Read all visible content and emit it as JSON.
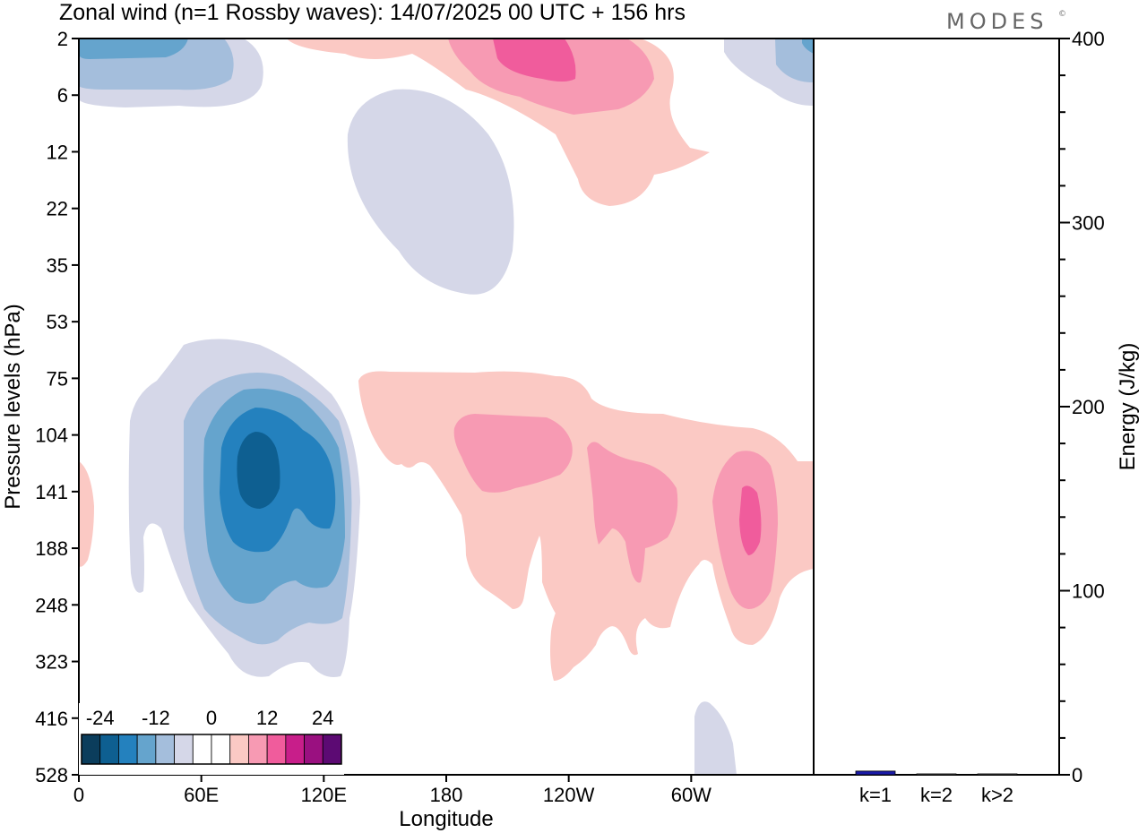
{
  "header": {
    "title": "Zonal wind (n=1 Rossby waves):  14/07/2025  00 UTC  + 156 hrs",
    "brand": "MODES",
    "brand_mark": "©"
  },
  "chart_data": [
    {
      "type": "heatmap",
      "title": "Zonal wind (n=1 Rossby waves):  14/07/2025  00 UTC  + 156 hrs",
      "xlabel": "Longitude",
      "ylabel": "Pressure levels (hPa)",
      "x_ticks": [
        "0",
        "60E",
        "120E",
        "180",
        "120W",
        "60W"
      ],
      "x_tick_degrees_east": [
        0,
        60,
        120,
        180,
        240,
        300
      ],
      "xlim_degrees_east": [
        0,
        360
      ],
      "y_ticks": [
        "2",
        "6",
        "12",
        "22",
        "35",
        "53",
        "75",
        "104",
        "141",
        "188",
        "248",
        "323",
        "416",
        "528"
      ],
      "y_order": "top-to-bottom",
      "colorbar": {
        "labels": [
          "-24",
          "-12",
          "0",
          "12",
          "24"
        ],
        "colors": [
          "#0b3d5c",
          "#0e5f91",
          "#2481be",
          "#65a4cd",
          "#a4bedc",
          "#d5d7e8",
          "#ffffff",
          "#ffffff",
          "#fbc9c4",
          "#f79ab3",
          "#f05c9c",
          "#c81e8a",
          "#9a1080",
          "#5c0a73"
        ]
      },
      "colors": {
        "neg1": "#d5d7e8",
        "neg2": "#a4bedc",
        "neg3": "#65a4cd",
        "neg4": "#2481be",
        "neg5": "#0e5f91",
        "pos1": "#fbc9c4",
        "pos2": "#f79ab3",
        "pos3": "#f05c9c"
      }
    },
    {
      "type": "bar",
      "ylabel": "Energy (J/kg)",
      "categories": [
        "k=1",
        "k=2",
        "k>2"
      ],
      "values": [
        2,
        0.5,
        0.5
      ],
      "ylim": [
        0,
        400
      ],
      "y_ticks": [
        "0",
        "100",
        "200",
        "300",
        "400"
      ],
      "bar_colors": [
        "#1a1aa8",
        "#333333",
        "#333333"
      ],
      "y_axis_side": "right"
    }
  ]
}
